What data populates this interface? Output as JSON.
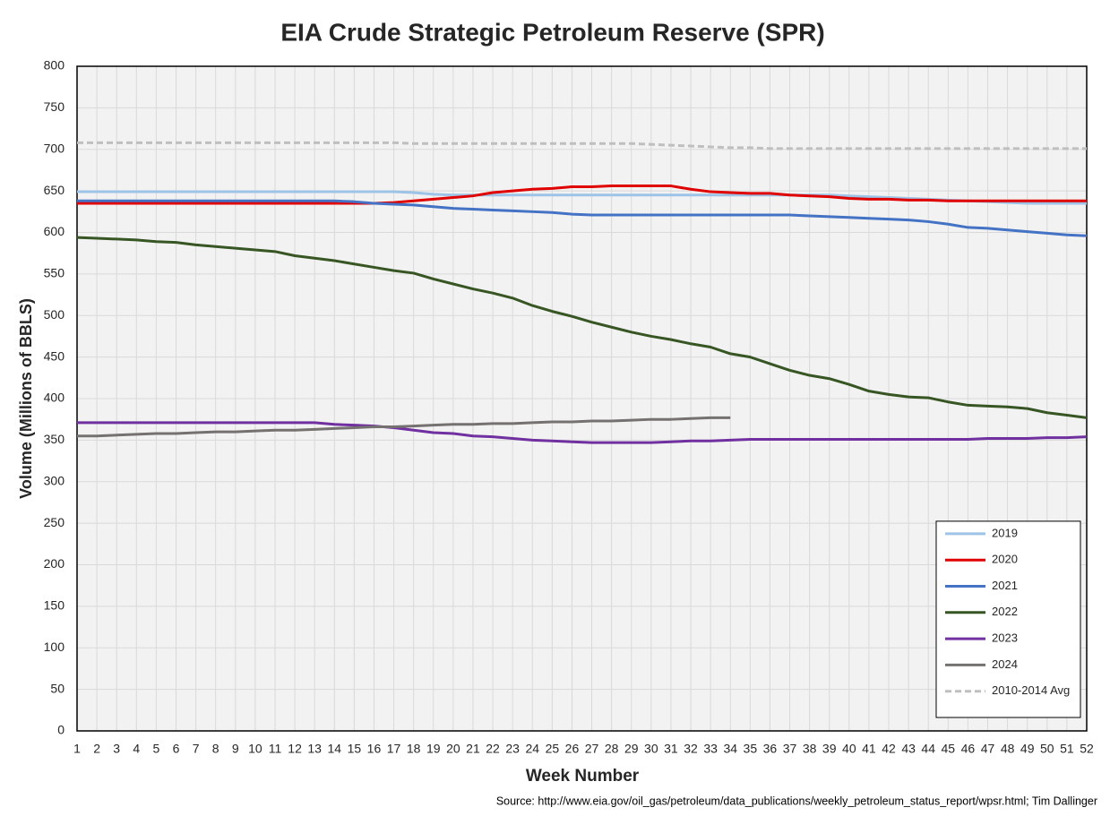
{
  "chart_data": {
    "type": "line",
    "title": "EIA Crude Strategic Petroleum Reserve (SPR)",
    "xlabel": "Week Number",
    "ylabel": "Volume (Millions of BBLS)",
    "source": "Source: http://www.eia.gov/oil_gas/petroleum/data_publications/weekly_petroleum_status_report/wpsr.html; Tim Dallinger",
    "x": [
      1,
      2,
      3,
      4,
      5,
      6,
      7,
      8,
      9,
      10,
      11,
      12,
      13,
      14,
      15,
      16,
      17,
      18,
      19,
      20,
      21,
      22,
      23,
      24,
      25,
      26,
      27,
      28,
      29,
      30,
      31,
      32,
      33,
      34,
      35,
      36,
      37,
      38,
      39,
      40,
      41,
      42,
      43,
      44,
      45,
      46,
      47,
      48,
      49,
      50,
      51,
      52
    ],
    "xlim": [
      1,
      52
    ],
    "xticks": [
      1,
      2,
      3,
      4,
      5,
      6,
      7,
      8,
      9,
      10,
      11,
      12,
      13,
      14,
      15,
      16,
      17,
      18,
      19,
      20,
      21,
      22,
      23,
      24,
      25,
      26,
      27,
      28,
      29,
      30,
      31,
      32,
      33,
      34,
      35,
      36,
      37,
      38,
      39,
      40,
      41,
      42,
      43,
      44,
      45,
      46,
      47,
      48,
      49,
      50,
      51,
      52
    ],
    "ylim": [
      0,
      800
    ],
    "yticks": [
      0,
      50,
      100,
      150,
      200,
      250,
      300,
      350,
      400,
      450,
      500,
      550,
      600,
      650,
      700,
      750,
      800
    ],
    "grid": true,
    "legend": "lower right",
    "series": [
      {
        "name": "2019",
        "color": "#9dc3e6",
        "dashed": false,
        "values": [
          649,
          649,
          649,
          649,
          649,
          649,
          649,
          649,
          649,
          649,
          649,
          649,
          649,
          649,
          649,
          649,
          649,
          648,
          646,
          645,
          645,
          645,
          645,
          645,
          645,
          645,
          645,
          645,
          645,
          645,
          645,
          645,
          645,
          645,
          645,
          645,
          645,
          645,
          645,
          644,
          643,
          642,
          641,
          640,
          639,
          638,
          637,
          636,
          635,
          635,
          635,
          635
        ]
      },
      {
        "name": "2020",
        "color": "#e00000",
        "dashed": false,
        "values": [
          635,
          635,
          635,
          635,
          635,
          635,
          635,
          635,
          635,
          635,
          635,
          635,
          635,
          635,
          635,
          635,
          636,
          638,
          640,
          642,
          644,
          648,
          650,
          652,
          653,
          655,
          655,
          656,
          656,
          656,
          656,
          652,
          649,
          648,
          647,
          647,
          645,
          644,
          643,
          641,
          640,
          640,
          639,
          639,
          638,
          638,
          638,
          638,
          638,
          638,
          638,
          638
        ]
      },
      {
        "name": "2021",
        "color": "#4472c4",
        "dashed": false,
        "values": [
          638,
          638,
          638,
          638,
          638,
          638,
          638,
          638,
          638,
          638,
          638,
          638,
          638,
          638,
          637,
          635,
          634,
          633,
          631,
          629,
          628,
          627,
          626,
          625,
          624,
          622,
          621,
          621,
          621,
          621,
          621,
          621,
          621,
          621,
          621,
          621,
          621,
          620,
          619,
          618,
          617,
          616,
          615,
          613,
          610,
          606,
          605,
          603,
          601,
          599,
          597,
          596
        ]
      },
      {
        "name": "2022",
        "color": "#375623",
        "dashed": false,
        "values": [
          594,
          593,
          592,
          591,
          589,
          588,
          585,
          583,
          581,
          579,
          577,
          572,
          569,
          566,
          562,
          558,
          554,
          551,
          544,
          538,
          532,
          527,
          521,
          512,
          505,
          499,
          492,
          486,
          480,
          475,
          471,
          466,
          462,
          454,
          450,
          442,
          434,
          428,
          424,
          417,
          409,
          405,
          402,
          401,
          396,
          392,
          391,
          390,
          388,
          383,
          380,
          377
        ]
      },
      {
        "name": "2023",
        "color": "#7030a0",
        "dashed": false,
        "values": [
          371,
          371,
          371,
          371,
          371,
          371,
          371,
          371,
          371,
          371,
          371,
          371,
          371,
          369,
          368,
          367,
          365,
          362,
          359,
          358,
          355,
          354,
          352,
          350,
          349,
          348,
          347,
          347,
          347,
          347,
          348,
          349,
          349,
          350,
          351,
          351,
          351,
          351,
          351,
          351,
          351,
          351,
          351,
          351,
          351,
          351,
          352,
          352,
          352,
          353,
          353,
          354
        ]
      },
      {
        "name": "2024",
        "color": "#767171",
        "dashed": false,
        "values": [
          355,
          355,
          356,
          357,
          358,
          358,
          359,
          360,
          360,
          361,
          362,
          362,
          363,
          364,
          365,
          366,
          366,
          367,
          368,
          369,
          369,
          370,
          370,
          371,
          372,
          372,
          373,
          373,
          374,
          375,
          375,
          376,
          377,
          377,
          null,
          null,
          null,
          null,
          null,
          null,
          null,
          null,
          null,
          null,
          null,
          null,
          null,
          null,
          null,
          null,
          null,
          null
        ]
      },
      {
        "name": "2010-2014 Avg",
        "color": "#bfbfbf",
        "dashed": true,
        "values": [
          708,
          708,
          708,
          708,
          708,
          708,
          708,
          708,
          708,
          708,
          708,
          708,
          708,
          708,
          708,
          708,
          708,
          707,
          707,
          707,
          707,
          707,
          707,
          707,
          707,
          707,
          707,
          707,
          707,
          706,
          705,
          704,
          703,
          702,
          702,
          701,
          701,
          701,
          701,
          701,
          701,
          701,
          701,
          701,
          701,
          701,
          701,
          701,
          701,
          701,
          701,
          701
        ]
      }
    ]
  }
}
